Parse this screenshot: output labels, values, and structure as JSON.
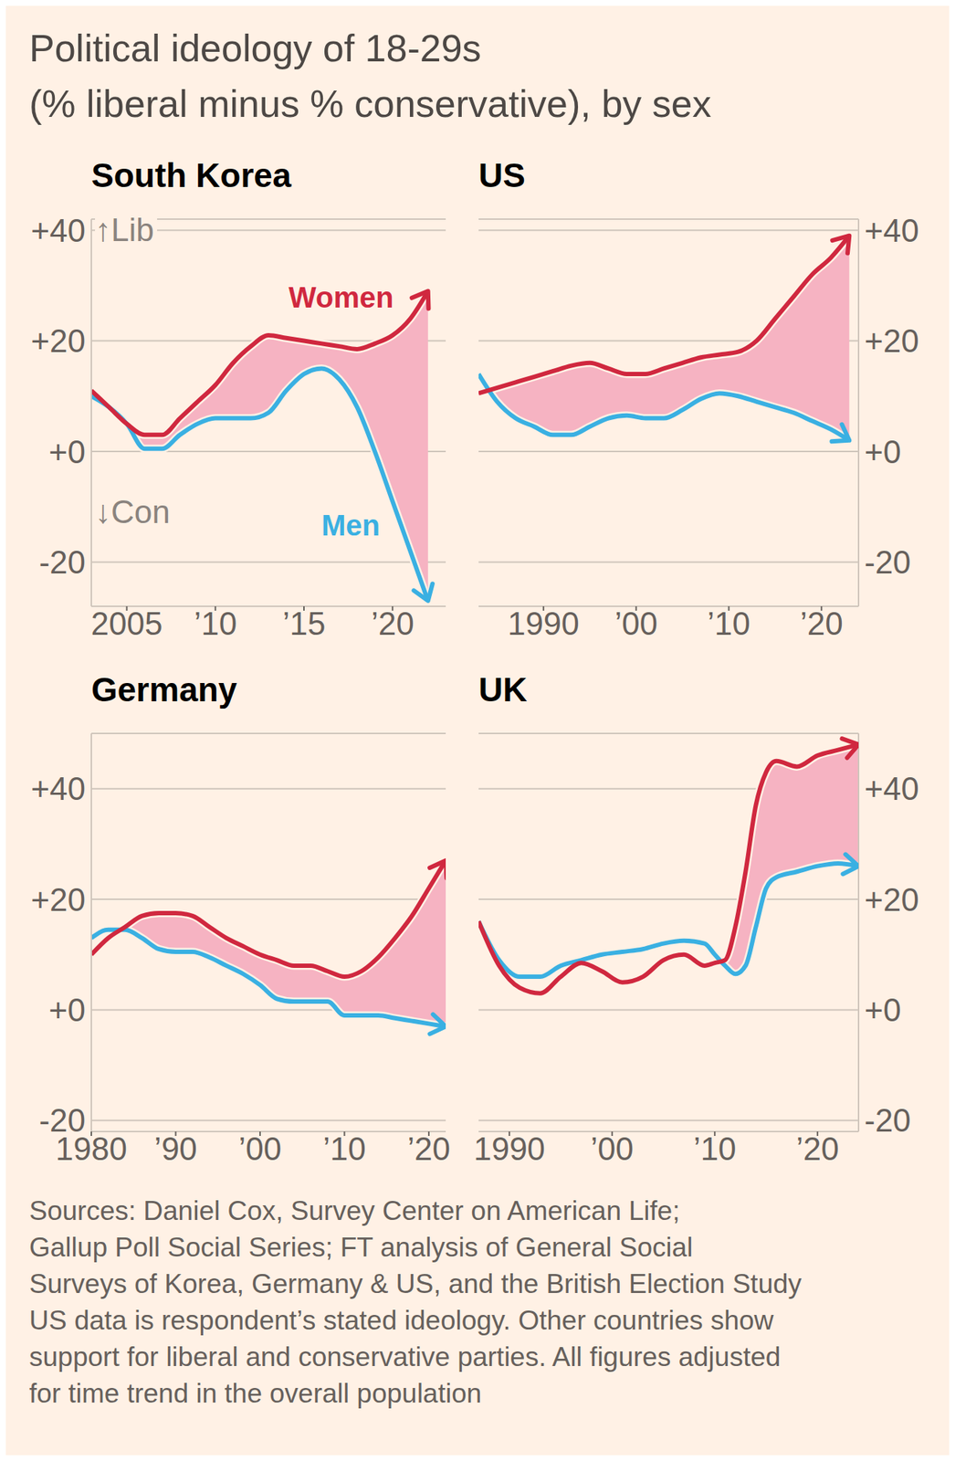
{
  "title": "Political ideology of 18-29s",
  "subtitle": "(% liberal minus % conservative), by sex",
  "source": [
    "Sources: Daniel Cox, Survey Center on American Life;",
    "Gallup Poll Social Series; FT analysis of General Social",
    "Surveys of Korea, Germany & US, and the British Election Study",
    "US data is respondent’s stated ideology. Other countries show",
    "support for liberal and conservative parties. All figures adjusted",
    "for time trend in the overall population"
  ],
  "chart_data": [
    {
      "type": "line",
      "title": "South Korea",
      "annotations": [
        "↑Lib",
        "↓Con"
      ],
      "grid": true,
      "x": [
        2003,
        2004,
        2005,
        2006,
        2007,
        2008,
        2009,
        2010,
        2011,
        2012,
        2013,
        2014,
        2015,
        2016,
        2017,
        2018,
        2019,
        2020,
        2021,
        2022
      ],
      "xlim": [
        2003,
        2023
      ],
      "xticks": [
        2005,
        {
          "value": 2010,
          "label": "’10"
        },
        {
          "value": 2015,
          "label": "’15"
        },
        {
          "value": 2020,
          "label": "’20"
        }
      ],
      "ylim": [
        -28,
        42
      ],
      "yticks": [
        -20,
        {
          "value": 0,
          "label": "+0"
        },
        {
          "value": 20,
          "label": "+20"
        },
        {
          "value": 40,
          "label": "+40"
        }
      ],
      "series": [
        {
          "name": "Women",
          "color": "#d0283f",
          "values": [
            11,
            8,
            5,
            3,
            3,
            6,
            9,
            12,
            16,
            19,
            21,
            20.5,
            20,
            19.5,
            19,
            18.5,
            19.5,
            21,
            24,
            29
          ]
        },
        {
          "name": "Men",
          "color": "#3ab0e2",
          "values": [
            10,
            8,
            5,
            0.5,
            0.5,
            3,
            5,
            6,
            6,
            6,
            7,
            11,
            14,
            15,
            13,
            8,
            0,
            -9,
            -18,
            -27
          ]
        }
      ]
    },
    {
      "type": "line",
      "title": "US",
      "grid": true,
      "x": [
        1983,
        1985,
        1987,
        1989,
        1991,
        1993,
        1995,
        1997,
        1999,
        2001,
        2003,
        2005,
        2007,
        2009,
        2011,
        2013,
        2015,
        2017,
        2019,
        2021,
        2023
      ],
      "xlim": [
        1983,
        2024
      ],
      "xticks": [
        1990,
        {
          "value": 2000,
          "label": "’00"
        },
        {
          "value": 2010,
          "label": "’10"
        },
        {
          "value": 2020,
          "label": "’20"
        }
      ],
      "ylim": [
        -28,
        42
      ],
      "yticks": [
        -20,
        {
          "value": 0,
          "label": "+0"
        },
        {
          "value": 20,
          "label": "+20"
        },
        {
          "value": 40,
          "label": "+40"
        }
      ],
      "series": [
        {
          "name": "Women",
          "color": "#d0283f",
          "values": [
            10.5,
            11.5,
            12.5,
            13.5,
            14.5,
            15.5,
            16,
            15,
            14,
            14,
            15,
            16,
            17,
            17.5,
            18,
            20,
            24,
            28,
            32,
            35,
            39
          ]
        },
        {
          "name": "Men",
          "color": "#3ab0e2",
          "values": [
            14,
            9,
            6,
            4.5,
            3,
            3,
            4.5,
            6,
            6.5,
            6,
            6,
            7.5,
            9.5,
            10.5,
            10,
            9,
            8,
            7,
            5.5,
            4,
            2
          ]
        }
      ]
    },
    {
      "type": "line",
      "title": "Germany",
      "grid": true,
      "x": [
        1980,
        1982,
        1984,
        1986,
        1988,
        1990,
        1992,
        1994,
        1996,
        1998,
        2000,
        2002,
        2004,
        2006,
        2008,
        2010,
        2012,
        2014,
        2016,
        2018,
        2020,
        2022
      ],
      "xlim": [
        1980,
        2022
      ],
      "xticks": [
        1980,
        {
          "value": 1990,
          "label": "’90"
        },
        {
          "value": 2000,
          "label": "’00"
        },
        {
          "value": 2010,
          "label": "’10"
        },
        {
          "value": 2020,
          "label": "’20"
        }
      ],
      "ylim": [
        -22,
        50
      ],
      "yticks": [
        -20,
        {
          "value": 0,
          "label": "+0"
        },
        {
          "value": 20,
          "label": "+20"
        },
        {
          "value": 40,
          "label": "+40"
        }
      ],
      "series": [
        {
          "name": "Women",
          "color": "#d0283f",
          "values": [
            10,
            13,
            15,
            17,
            17.5,
            17.5,
            17,
            15,
            13,
            11.5,
            10,
            9,
            8,
            8,
            7,
            6,
            7,
            9.5,
            13,
            17,
            22,
            27
          ]
        },
        {
          "name": "Men",
          "color": "#3ab0e2",
          "values": [
            13,
            14.5,
            14.5,
            13,
            11,
            10.5,
            10.5,
            9.5,
            8,
            6.5,
            4.5,
            2,
            1.5,
            1.5,
            1.5,
            -1,
            -1,
            -1,
            -1.5,
            -2,
            -2.5,
            -3
          ]
        }
      ]
    },
    {
      "type": "line",
      "title": "UK",
      "grid": true,
      "x": [
        1987,
        1989,
        1991,
        1993,
        1995,
        1997,
        1999,
        2001,
        2003,
        2005,
        2007,
        2009,
        2010,
        2011,
        2012,
        2013,
        2014,
        2015,
        2016,
        2018,
        2020,
        2022,
        2024
      ],
      "xlim": [
        1987,
        2024
      ],
      "xticks": [
        1990,
        {
          "value": 2000,
          "label": "’00"
        },
        {
          "value": 2010,
          "label": "’10"
        },
        {
          "value": 2020,
          "label": "’20"
        }
      ],
      "ylim": [
        -22,
        50
      ],
      "yticks": [
        -20,
        {
          "value": 0,
          "label": "+0"
        },
        {
          "value": 20,
          "label": "+20"
        },
        {
          "value": 40,
          "label": "+40"
        }
      ],
      "series": [
        {
          "name": "Women",
          "color": "#d0283f",
          "values": [
            16,
            8,
            4,
            3,
            6,
            8.5,
            7,
            5,
            6,
            9,
            10,
            8,
            8.5,
            9,
            15,
            25,
            37,
            43,
            45,
            44,
            46,
            47,
            48
          ]
        },
        {
          "name": "Men",
          "color": "#3ab0e2",
          "values": [
            16,
            9,
            6,
            6,
            8,
            9,
            10,
            10.5,
            11,
            12,
            12.5,
            12,
            10,
            8,
            6.5,
            8,
            15,
            22,
            24,
            25,
            26,
            26.5,
            26
          ]
        }
      ]
    }
  ]
}
